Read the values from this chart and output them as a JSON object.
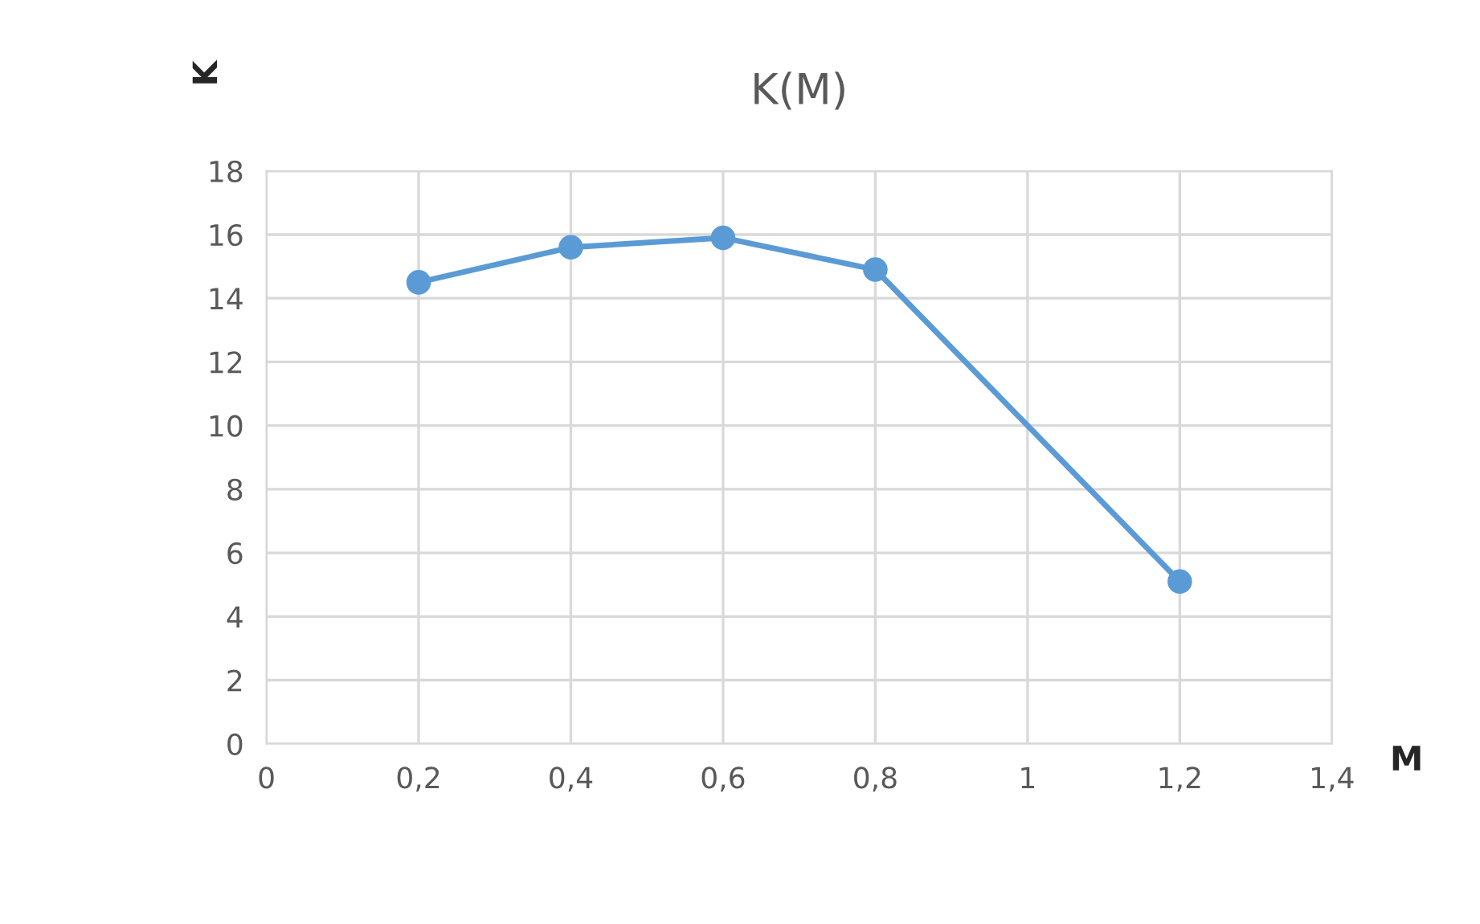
{
  "chart_data": {
    "type": "line",
    "title": "K(M)",
    "xlabel": "M",
    "ylabel": "K",
    "x": [
      0.2,
      0.4,
      0.6,
      0.8,
      1.2
    ],
    "series": [
      {
        "color": "#5b9bd5",
        "values": [
          14.5,
          15.6,
          15.9,
          14.9,
          5.1
        ]
      }
    ],
    "xlim": [
      0,
      1.4
    ],
    "xticks": [
      0,
      {
        "value": 0.2,
        "label": "0,2"
      },
      {
        "value": 0.4,
        "label": "0,4"
      },
      {
        "value": 0.6,
        "label": "0,6"
      },
      {
        "value": 0.8,
        "label": "0,8"
      },
      1,
      {
        "value": 1.2,
        "label": "1,2"
      },
      {
        "value": 1.4,
        "label": "1,4"
      }
    ],
    "ylim": [
      0,
      18
    ],
    "yticks": [
      0,
      2,
      4,
      6,
      8,
      10,
      12,
      14,
      16,
      18
    ],
    "grid": true,
    "marker": "circle",
    "line_style": "solid",
    "legend": false
  }
}
